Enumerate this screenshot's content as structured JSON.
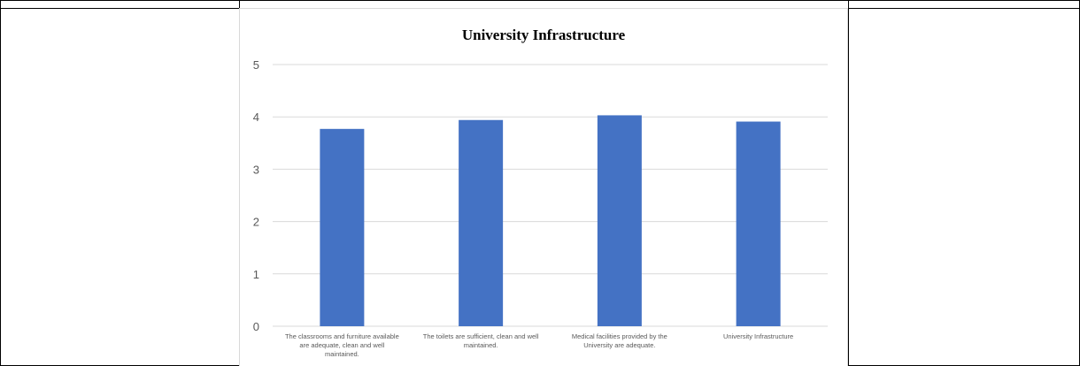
{
  "chart_data": {
    "type": "bar",
    "title": "University Infrastructure",
    "categories": [
      "The classrooms and furniture available are adequate, clean and well maintained.",
      "The toilets are sufficient, clean and well maintained.",
      "Medical facilities provided by the University are adequate.",
      "University Infrastructure"
    ],
    "category_lines": [
      [
        "The classrooms and furniture available",
        "are adequate, clean and well",
        "maintained."
      ],
      [
        "The toilets are sufficient, clean and well",
        "maintained."
      ],
      [
        "Medical facilities provided by the",
        "University are adequate."
      ],
      [
        "University Infrastructure"
      ]
    ],
    "series": [
      {
        "values": [
          3.77,
          3.94,
          4.03,
          3.91
        ]
      }
    ],
    "ylim": [
      0,
      5
    ],
    "yticks": [
      "0",
      "1",
      "2",
      "3",
      "4",
      "5"
    ],
    "xlabel": "",
    "ylabel": "",
    "grid": true,
    "legend": "none",
    "bar_color": "#4472c4",
    "grid_color": "#d9d9d9"
  }
}
